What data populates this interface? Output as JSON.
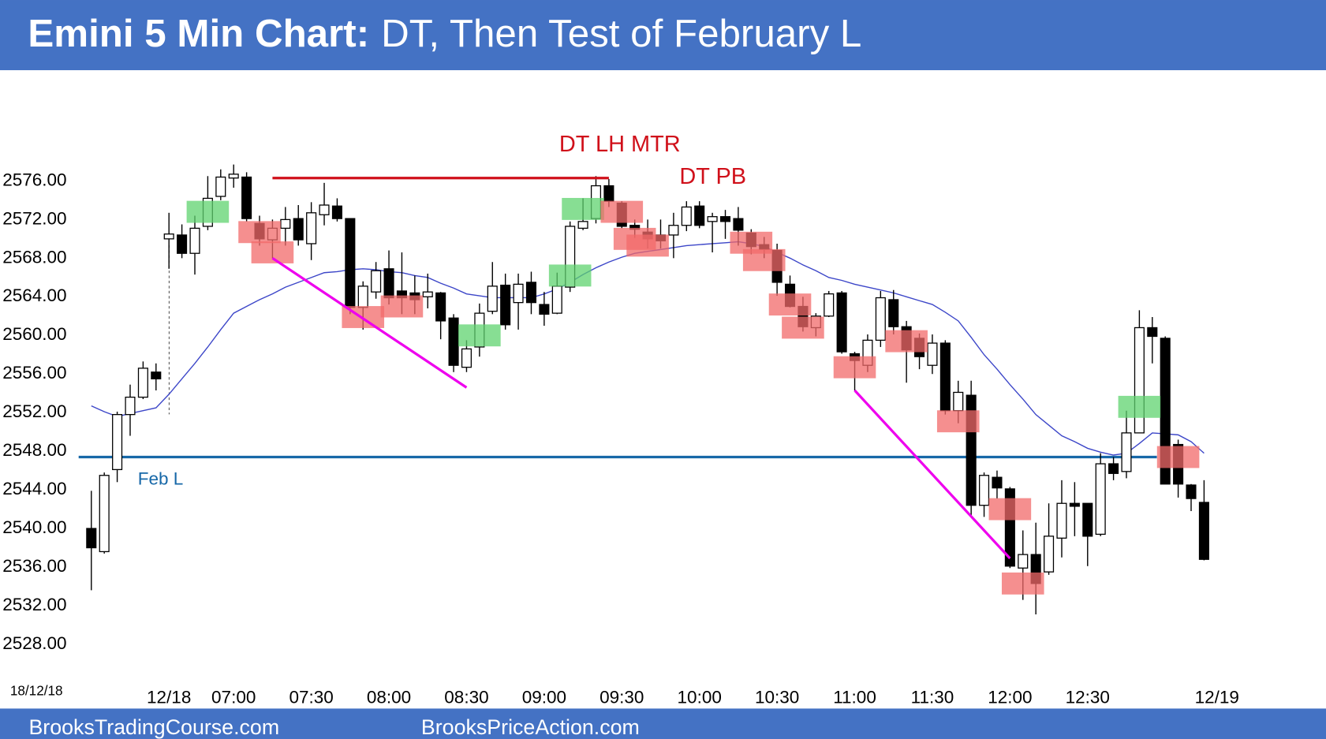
{
  "chart_data": {
    "type": "candlestick",
    "title_lead": "Emini 5 Min Chart:",
    "title": "DT, Then Test of February L",
    "date_stamp": "18/12/18",
    "footer": [
      "BrooksTradingCourse.com",
      "BrooksPriceAction.com"
    ],
    "annotations": [
      "DT LH MTR",
      "DT PB"
    ],
    "up_color": "#ffffff",
    "down_color": "#000000",
    "open": [
      2540.0,
      2537.6,
      2546.1,
      2551.8,
      2553.6,
      2556.2,
      2570.0,
      2570.4,
      2568.5,
      2571.3,
      2574.4,
      2576.3,
      2576.4,
      2571.6,
      2569.9,
      2571.1,
      2572.1,
      2569.5,
      2572.5,
      2573.4,
      2572.1,
      2562.9,
      2564.5,
      2566.9,
      2564.6,
      2564.4,
      2564.0,
      2564.4,
      2561.8,
      2556.7,
      2558.8,
      2562.5,
      2565.2,
      2563.4,
      2565.5,
      2563.2,
      2562.3,
      2565.0,
      2571.1,
      2572.1,
      2575.5,
      2573.7,
      2571.4,
      2570.7,
      2570.4,
      2570.4,
      2571.4,
      2573.4,
      2571.8,
      2572.3,
      2572.1,
      2570.6,
      2569.4,
      2568.8,
      2565.3,
      2563.0,
      2560.8,
      2562.0,
      2564.4,
      2558.1,
      2556.9,
      2559.5,
      2563.7,
      2560.9,
      2559.7,
      2556.9,
      2559.2,
      2552.2,
      2553.8,
      2542.4,
      2545.3,
      2544.1,
      2535.9,
      2537.3,
      2535.5,
      2539.0,
      2542.6,
      2542.6,
      2539.4,
      2546.7,
      2545.9,
      2549.9,
      2560.8,
      2559.7,
      2548.7,
      2544.5,
      2542.7
    ],
    "high": [
      2543.9,
      2545.8,
      2552.1,
      2554.9,
      2557.3,
      2557.1,
      2572.7,
      2571.5,
      2572.4,
      2576.5,
      2577.2,
      2577.7,
      2576.9,
      2572.4,
      2572.0,
      2573.3,
      2573.5,
      2573.8,
      2575.8,
      2574.2,
      2572.1,
      2565.6,
      2567.6,
      2568.8,
      2568.6,
      2566.2,
      2566.4,
      2564.5,
      2562.2,
      2559.5,
      2563.3,
      2567.6,
      2566.4,
      2566.4,
      2566.6,
      2564.5,
      2566.5,
      2571.8,
      2574.2,
      2576.5,
      2576.2,
      2573.9,
      2572.0,
      2572.0,
      2572.0,
      2572.7,
      2573.9,
      2573.9,
      2572.7,
      2573.0,
      2573.3,
      2571.0,
      2570.2,
      2569.5,
      2566.2,
      2564.0,
      2562.3,
      2564.6,
      2564.6,
      2558.3,
      2560.1,
      2564.6,
      2564.7,
      2561.5,
      2560.2,
      2560.1,
      2559.5,
      2555.3,
      2555.3,
      2545.8,
      2546.0,
      2544.3,
      2539.8,
      2540.6,
      2542.6,
      2545.0,
      2544.8,
      2542.6,
      2547.8,
      2547.4,
      2552.2,
      2562.6,
      2561.9,
      2559.9,
      2549.2,
      2544.6,
      2545.0
    ],
    "low": [
      2533.6,
      2537.4,
      2544.8,
      2549.6,
      2553.4,
      2554.3,
      2566.9,
      2568.0,
      2566.3,
      2570.9,
      2574.0,
      2575.3,
      2571.8,
      2569.3,
      2568.0,
      2569.3,
      2569.3,
      2567.8,
      2571.4,
      2571.8,
      2562.2,
      2560.6,
      2563.8,
      2563.2,
      2562.2,
      2562.2,
      2562.8,
      2559.6,
      2556.2,
      2556.2,
      2557.8,
      2562.2,
      2560.6,
      2560.6,
      2562.2,
      2561.0,
      2562.2,
      2564.5,
      2570.9,
      2571.6,
      2573.3,
      2571.1,
      2570.1,
      2569.0,
      2569.0,
      2568.0,
      2570.8,
      2571.1,
      2568.6,
      2570.0,
      2569.3,
      2568.4,
      2568.0,
      2564.1,
      2562.9,
      2560.4,
      2559.9,
      2561.9,
      2558.1,
      2554.3,
      2556.2,
      2558.8,
      2560.1,
      2555.1,
      2556.5,
      2556.0,
      2551.8,
      2550.9,
      2541.2,
      2541.2,
      2543.1,
      2535.9,
      2532.6,
      2531.1,
      2535.2,
      2537.0,
      2539.2,
      2536.1,
      2539.2,
      2545.0,
      2545.2,
      2549.9,
      2557.1,
      2544.6,
      2543.2,
      2541.8,
      2536.7
    ],
    "close": [
      2538.0,
      2545.5,
      2551.8,
      2553.6,
      2556.6,
      2555.5,
      2570.5,
      2568.5,
      2571.1,
      2574.2,
      2576.4,
      2576.7,
      2572.1,
      2570.0,
      2571.1,
      2572.0,
      2569.9,
      2572.7,
      2573.5,
      2572.1,
      2562.9,
      2565.1,
      2566.7,
      2563.9,
      2563.9,
      2563.7,
      2564.5,
      2561.5,
      2556.9,
      2558.6,
      2562.3,
      2565.1,
      2561.1,
      2565.3,
      2563.4,
      2562.2,
      2565.1,
      2571.3,
      2571.8,
      2575.5,
      2573.9,
      2571.3,
      2571.0,
      2570.0,
      2569.8,
      2571.4,
      2573.3,
      2571.4,
      2572.3,
      2571.8,
      2570.9,
      2569.2,
      2568.9,
      2565.5,
      2563.0,
      2560.9,
      2562.0,
      2564.3,
      2558.3,
      2557.4,
      2559.5,
      2563.9,
      2560.9,
      2558.5,
      2557.8,
      2559.2,
      2552.2,
      2554.1,
      2542.4,
      2545.5,
      2544.2,
      2536.1,
      2537.3,
      2534.3,
      2539.2,
      2542.6,
      2542.3,
      2539.2,
      2546.7,
      2545.7,
      2549.9,
      2560.8,
      2559.9,
      2544.6,
      2544.6,
      2543.1,
      2536.8
    ],
    "moving_average": {
      "color": "#3c46c8",
      "values": [
        2552.7,
        2552.1,
        2551.6,
        2551.9,
        2552.2,
        2552.5,
        2553.9,
        2555.5,
        2557.1,
        2558.8,
        2560.6,
        2562.3,
        2563.0,
        2563.7,
        2564.3,
        2565.0,
        2565.5,
        2566.0,
        2566.5,
        2566.6,
        2566.8,
        2566.9,
        2566.8,
        2566.6,
        2566.5,
        2566.2,
        2566.0,
        2565.4,
        2564.9,
        2564.3,
        2564.1,
        2563.9,
        2563.9,
        2563.9,
        2563.9,
        2564.3,
        2564.8,
        2565.5,
        2566.3,
        2567.0,
        2567.6,
        2568.1,
        2568.5,
        2568.7,
        2568.9,
        2569.1,
        2569.3,
        2569.4,
        2569.5,
        2569.6,
        2569.7,
        2569.5,
        2569.2,
        2568.6,
        2568.0,
        2567.3,
        2566.7,
        2566.0,
        2565.7,
        2565.3,
        2565.0,
        2564.7,
        2564.4,
        2564.0,
        2563.6,
        2563.2,
        2562.4,
        2561.5,
        2559.8,
        2558.0,
        2556.5,
        2554.9,
        2553.4,
        2551.8,
        2550.7,
        2549.6,
        2549.0,
        2548.3,
        2547.9,
        2547.6,
        2547.8,
        2548.8,
        2549.9,
        2549.8,
        2549.7,
        2549.0,
        2547.8
      ]
    },
    "level": {
      "label": "Feb L",
      "value": 2547.4,
      "color": "#1768a8"
    },
    "lines": [
      {
        "color": "#d0101a",
        "x": [
          14,
          40
        ],
        "y": [
          2576.3,
          2576.3
        ]
      },
      {
        "color": "#ee00ee",
        "x": [
          14,
          29
        ],
        "y": [
          2568.0,
          2554.6
        ]
      },
      {
        "color": "#ee00ee",
        "x": [
          59,
          71
        ],
        "y": [
          2554.3,
          2536.9
        ]
      }
    ],
    "highlights": [
      {
        "color": "#5fd36f",
        "index": [
          9,
          38,
          37,
          30,
          81
        ],
        "price": [
          2572.8,
          2573.1,
          2566.2,
          2560.0,
          2552.6
        ]
      },
      {
        "color": "#f26a6a",
        "index": [
          13,
          14,
          21,
          24,
          41,
          42,
          43,
          51,
          52,
          54,
          55,
          59,
          63,
          67,
          71,
          72,
          84
        ],
        "price": [
          2570.7,
          2568.6,
          2561.9,
          2563.0,
          2572.8,
          2570.0,
          2569.3,
          2569.6,
          2567.8,
          2563.2,
          2560.8,
          2556.7,
          2559.4,
          2551.1,
          2542.0,
          2534.3,
          2547.4
        ]
      }
    ],
    "ylim": [
      2523,
      2587
    ],
    "yticks": [
      {
        "value": 2528,
        "label": "2528.00"
      },
      {
        "value": 2532,
        "label": "2532.00"
      },
      {
        "value": 2536,
        "label": "2536.00"
      },
      {
        "value": 2540,
        "label": "2540.00"
      },
      {
        "value": 2544,
        "label": "2544.00"
      },
      {
        "value": 2548,
        "label": "2548.00"
      },
      {
        "value": 2552,
        "label": "2552.00"
      },
      {
        "value": 2556,
        "label": "2556.00"
      },
      {
        "value": 2560,
        "label": "2560.00"
      },
      {
        "value": 2564,
        "label": "2564.00"
      },
      {
        "value": 2568,
        "label": "2568.00"
      },
      {
        "value": 2572,
        "label": "2572.00"
      },
      {
        "value": 2576,
        "label": "2576.00"
      }
    ],
    "xticks": [
      {
        "value": 6,
        "label": "12/18"
      },
      {
        "value": 11,
        "label": "07:00"
      },
      {
        "value": 17,
        "label": "07:30"
      },
      {
        "value": 23,
        "label": "08:00"
      },
      {
        "value": 29,
        "label": "08:30"
      },
      {
        "value": 35,
        "label": "09:00"
      },
      {
        "value": 41,
        "label": "09:30"
      },
      {
        "value": 47,
        "label": "10:00"
      },
      {
        "value": 53,
        "label": "10:30"
      },
      {
        "value": 59,
        "label": "11:00"
      },
      {
        "value": 65,
        "label": "11:30"
      },
      {
        "value": 71,
        "label": "12:00"
      },
      {
        "value": 77,
        "label": "12:30"
      },
      {
        "value": 87,
        "label": "12/19"
      }
    ]
  }
}
